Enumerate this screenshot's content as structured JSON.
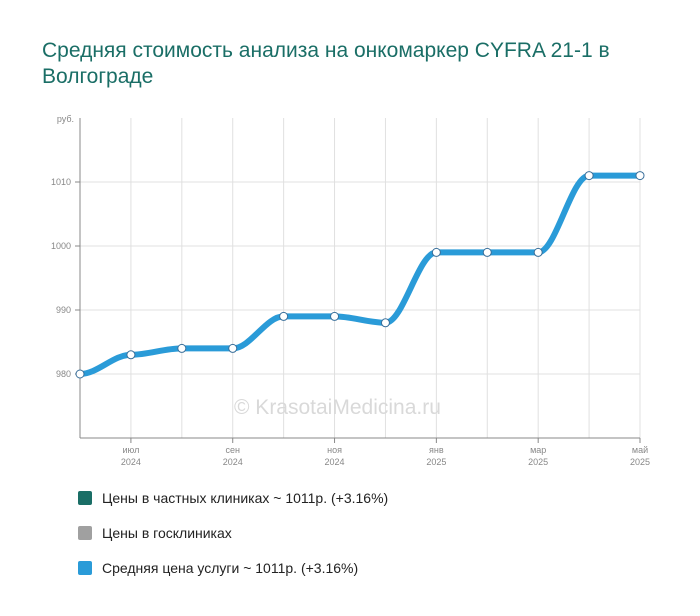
{
  "title": "Средняя стоимость анализа на онкомаркер CYFRA 21-1 в Волгограде",
  "watermark": "© KrasotaiMedicina.ru",
  "chart_data": {
    "type": "line",
    "title": "Средняя стоимость анализа на онкомаркер CYFRA 21-1 в Волгограде",
    "y_unit": "руб.",
    "ylim": [
      970,
      1020
    ],
    "y_ticks": [
      980,
      990,
      1000,
      1010
    ],
    "x_ticks": [
      {
        "label": "июл",
        "year": "2024",
        "index": 1
      },
      {
        "label": "сен",
        "year": "2024",
        "index": 3
      },
      {
        "label": "ноя",
        "year": "2024",
        "index": 5
      },
      {
        "label": "янв",
        "year": "2025",
        "index": 7
      },
      {
        "label": "мар",
        "year": "2025",
        "index": 9
      },
      {
        "label": "май",
        "year": "2025",
        "index": 11
      }
    ],
    "grid": true,
    "legend_position": "bottom",
    "series": [
      {
        "name": "Средняя цена услуги ~ 1011р. (+3.16%)",
        "color": "#2a9bd8",
        "values": [
          980,
          983,
          984,
          984,
          989,
          989,
          988,
          999,
          999,
          999,
          1011,
          1011
        ]
      }
    ]
  },
  "legend": [
    {
      "label": "Цены в частных клиниках ~ 1011р. (+3.16%)",
      "color": "#1a6e66"
    },
    {
      "label": "Цены в госклиниках",
      "color": "#a0a0a0"
    },
    {
      "label": "Средняя цена услуги ~ 1011р. (+3.16%)",
      "color": "#2a9bd8"
    }
  ]
}
